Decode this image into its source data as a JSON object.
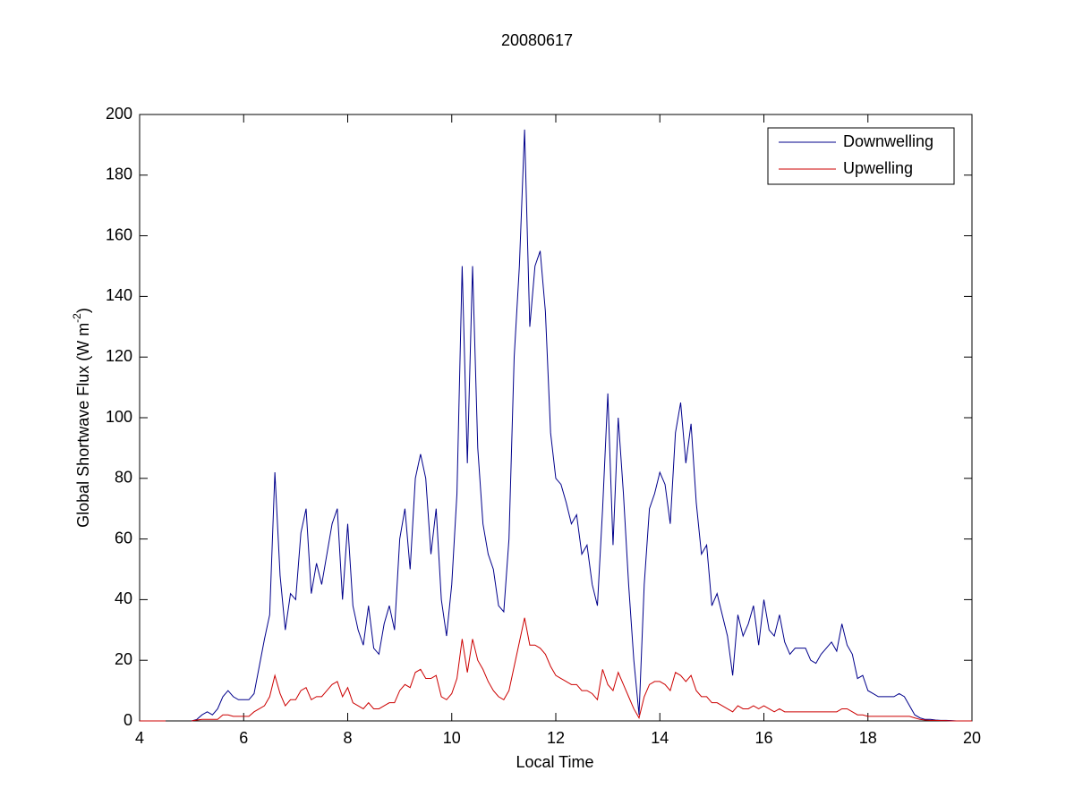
{
  "chart_data": {
    "type": "line",
    "title": "20080617",
    "xlabel": "Local Time",
    "ylabel": {
      "text": "Global Shortwave Flux (W m",
      "superscript": "-2",
      "suffix": ")"
    },
    "legend": "upper right",
    "xlim": [
      4,
      20
    ],
    "xticks": [
      4,
      6,
      8,
      10,
      12,
      14,
      16,
      18,
      20
    ],
    "ylim": [
      0,
      200
    ],
    "yticks": [
      0,
      20,
      40,
      60,
      80,
      100,
      120,
      140,
      160,
      180,
      200
    ],
    "x": [
      4,
      4.1,
      4.2,
      4.3,
      4.4,
      4.5,
      4.6,
      4.7,
      4.8,
      4.9,
      5,
      5.1,
      5.2,
      5.3,
      5.4,
      5.5,
      5.6,
      5.7,
      5.8,
      5.9,
      6,
      6.1,
      6.2,
      6.3,
      6.4,
      6.5,
      6.6,
      6.7,
      6.8,
      6.9,
      7,
      7.1,
      7.2,
      7.3,
      7.4,
      7.5,
      7.6,
      7.7,
      7.8,
      7.9,
      8,
      8.1,
      8.2,
      8.3,
      8.4,
      8.5,
      8.6,
      8.7,
      8.8,
      8.9,
      9,
      9.1,
      9.2,
      9.3,
      9.4,
      9.5,
      9.6,
      9.7,
      9.8,
      9.9,
      10,
      10.1,
      10.2,
      10.3,
      10.4,
      10.5,
      10.6,
      10.7,
      10.8,
      10.9,
      11,
      11.1,
      11.2,
      11.3,
      11.4,
      11.5,
      11.6,
      11.7,
      11.8,
      11.9,
      12,
      12.1,
      12.2,
      12.3,
      12.4,
      12.5,
      12.6,
      12.7,
      12.8,
      12.9,
      13,
      13.1,
      13.2,
      13.3,
      13.4,
      13.5,
      13.6,
      13.7,
      13.8,
      13.9,
      14,
      14.1,
      14.2,
      14.3,
      14.4,
      14.5,
      14.6,
      14.7,
      14.8,
      14.9,
      15,
      15.1,
      15.2,
      15.3,
      15.4,
      15.5,
      15.6,
      15.7,
      15.8,
      15.9,
      16,
      16.1,
      16.2,
      16.3,
      16.4,
      16.5,
      16.6,
      16.7,
      16.8,
      16.9,
      17,
      17.1,
      17.2,
      17.3,
      17.4,
      17.5,
      17.6,
      17.7,
      17.8,
      17.9,
      18,
      18.1,
      18.2,
      18.3,
      18.4,
      18.5,
      18.6,
      18.7,
      18.8,
      18.9,
      19,
      19.1,
      19.2,
      19.3,
      19.4,
      19.5,
      19.6,
      19.7,
      19.8,
      19.9,
      20
    ],
    "series": [
      {
        "name": "Downwelling",
        "color": "#00008b",
        "values": [
          0,
          0,
          0,
          0,
          0,
          0,
          null,
          null,
          null,
          null,
          0,
          0.5,
          2,
          3,
          2,
          4,
          8,
          10,
          8,
          7,
          7,
          7,
          9,
          18,
          27,
          35,
          82,
          48,
          30,
          42,
          40,
          62,
          70,
          42,
          52,
          45,
          55,
          65,
          70,
          40,
          65,
          38,
          30,
          25,
          38,
          24,
          22,
          32,
          38,
          30,
          60,
          70,
          50,
          80,
          88,
          80,
          55,
          70,
          40,
          28,
          45,
          75,
          150,
          85,
          150,
          90,
          65,
          55,
          50,
          38,
          36,
          60,
          120,
          150,
          195,
          130,
          150,
          155,
          135,
          95,
          80,
          78,
          72,
          65,
          68,
          55,
          58,
          45,
          38,
          70,
          108,
          58,
          100,
          75,
          45,
          20,
          2,
          45,
          70,
          75,
          82,
          78,
          65,
          95,
          105,
          85,
          98,
          72,
          55,
          58,
          38,
          42,
          35,
          28,
          15,
          35,
          28,
          32,
          38,
          25,
          40,
          30,
          28,
          35,
          26,
          22,
          24,
          24,
          24,
          20,
          19,
          22,
          24,
          26,
          23,
          32,
          25,
          22,
          14,
          15,
          10,
          9,
          8,
          8,
          8,
          8,
          9,
          8,
          5,
          2,
          1,
          0.5,
          0.5,
          0.3,
          0.2,
          0.2,
          0.1,
          0,
          0,
          0,
          0
        ]
      },
      {
        "name": "Upwelling",
        "color": "#cc0000",
        "values": [
          0,
          0,
          0,
          0,
          0,
          0,
          null,
          null,
          null,
          null,
          0,
          0.3,
          0.5,
          0.5,
          0.5,
          0.5,
          2,
          2,
          1.5,
          1.5,
          1.5,
          1.5,
          3,
          4,
          5,
          8,
          15,
          9,
          5,
          7,
          7,
          10,
          11,
          7,
          8,
          8,
          10,
          12,
          13,
          8,
          11,
          6,
          5,
          4,
          6,
          4,
          4,
          5,
          6,
          6,
          10,
          12,
          11,
          16,
          17,
          14,
          14,
          15,
          8,
          7,
          9,
          14,
          27,
          16,
          27,
          20,
          17,
          13,
          10,
          8,
          7,
          10,
          18,
          26,
          34,
          25,
          25,
          24,
          22,
          18,
          15,
          14,
          13,
          12,
          12,
          10,
          10,
          9,
          7,
          17,
          12,
          10,
          16,
          12,
          8,
          4,
          1,
          8,
          12,
          13,
          13,
          12,
          10,
          16,
          15,
          13,
          15,
          10,
          8,
          8,
          6,
          6,
          5,
          4,
          3,
          5,
          4,
          4,
          5,
          4,
          5,
          4,
          3,
          4,
          3,
          3,
          3,
          3,
          3,
          3,
          3,
          3,
          3,
          3,
          3,
          4,
          4,
          3,
          2,
          2,
          1.5,
          1.5,
          1.5,
          1.5,
          1.5,
          1.5,
          1.5,
          1.5,
          1.5,
          1,
          0.5,
          0.3,
          0.2,
          0.2,
          0.1,
          0.1,
          0,
          0,
          0,
          0,
          0
        ]
      }
    ]
  }
}
